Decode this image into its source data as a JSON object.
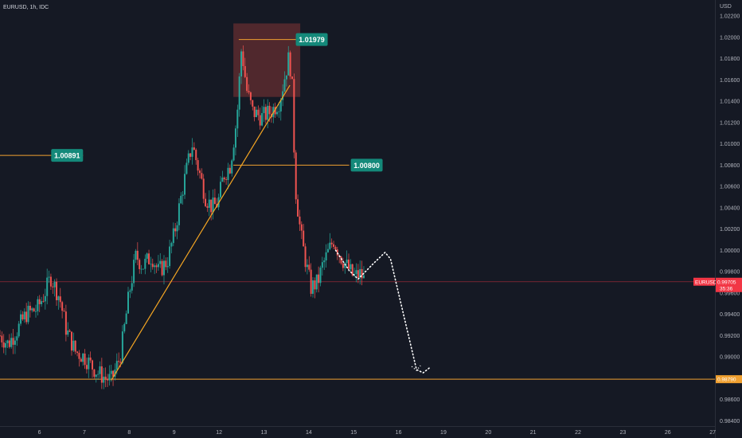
{
  "header": {
    "symbol": "EURUSD, 1h, IDC",
    "currency": "USD"
  },
  "colors": {
    "background": "#151924",
    "up": "#26a69a",
    "down": "#ef5350",
    "level_line": "#f0a030",
    "trend_line": "#f5a623",
    "zone_fill": "#5b2b2f",
    "badge": "#14897a",
    "projection": "#ffffff"
  },
  "chart_data": {
    "type": "candlestick",
    "symbol": "EURUSD",
    "interval": "1h",
    "source": "IDC",
    "y_axis": {
      "range": [
        0.9835,
        1.0235
      ],
      "ticks": [
        "1.02200",
        "1.02000",
        "1.01800",
        "1.01600",
        "1.01400",
        "1.01200",
        "1.01000",
        "1.00800",
        "1.00600",
        "1.00400",
        "1.00200",
        "1.00000",
        "0.99800",
        "0.99600",
        "0.99400",
        "0.99200",
        "0.99000",
        "0.98600",
        "0.98400"
      ]
    },
    "x_axis": {
      "ticks": [
        {
          "label": "6",
          "day": 6
        },
        {
          "label": "7",
          "day": 7
        },
        {
          "label": "8",
          "day": 8
        },
        {
          "label": "9",
          "day": 9
        },
        {
          "label": "12",
          "day": 10
        },
        {
          "label": "13",
          "day": 11
        },
        {
          "label": "14",
          "day": 12
        },
        {
          "label": "15",
          "day": 13
        },
        {
          "label": "16",
          "day": 14
        },
        {
          "label": "19",
          "day": 15
        },
        {
          "label": "20",
          "day": 16
        },
        {
          "label": "21",
          "day": 17
        },
        {
          "label": "22",
          "day": 18
        },
        {
          "label": "23",
          "day": 19
        },
        {
          "label": "26",
          "day": 20
        },
        {
          "label": "27",
          "day": 21
        }
      ],
      "range": [
        5.12,
        21.05
      ]
    },
    "candles_path": [
      [
        5.12,
        0.992
      ],
      [
        5.3,
        0.9912
      ],
      [
        5.5,
        0.9925
      ],
      [
        5.7,
        0.994
      ],
      [
        5.95,
        0.9945
      ],
      [
        6.1,
        0.9958
      ],
      [
        6.25,
        0.9975
      ],
      [
        6.45,
        0.9955
      ],
      [
        6.6,
        0.9925
      ],
      [
        6.8,
        0.9905
      ],
      [
        7.0,
        0.99
      ],
      [
        7.15,
        0.9892
      ],
      [
        7.3,
        0.9885
      ],
      [
        7.48,
        0.988
      ],
      [
        7.6,
        0.9878
      ],
      [
        7.8,
        0.99
      ],
      [
        8.0,
        0.996
      ],
      [
        8.15,
        0.9995
      ],
      [
        8.3,
        0.9985
      ],
      [
        8.5,
        0.9995
      ],
      [
        8.65,
        0.998
      ],
      [
        8.85,
        0.999
      ],
      [
        9.0,
        1.0015
      ],
      [
        9.2,
        1.006
      ],
      [
        9.4,
        1.01
      ],
      [
        9.55,
        1.0075
      ],
      [
        9.7,
        1.005
      ],
      [
        9.85,
        1.004
      ],
      [
        9.98,
        1.0045
      ],
      [
        10.1,
        1.007
      ],
      [
        10.25,
        1.008
      ],
      [
        10.4,
        1.0125
      ],
      [
        10.5,
        1.019
      ],
      [
        10.62,
        1.015
      ],
      [
        10.75,
        1.013
      ],
      [
        10.95,
        1.0125
      ],
      [
        11.15,
        1.013
      ],
      [
        11.35,
        1.014
      ],
      [
        11.45,
        1.016
      ],
      [
        11.55,
        1.018
      ],
      [
        11.62,
        1.0165
      ],
      [
        11.7,
        1.006
      ],
      [
        11.82,
        1.0015
      ],
      [
        11.95,
        0.9985
      ],
      [
        12.05,
        0.9965
      ],
      [
        12.2,
        0.997
      ],
      [
        12.3,
        0.9985
      ],
      [
        12.45,
        1.0
      ],
      [
        12.55,
        1.001
      ],
      [
        12.7,
        0.9995
      ],
      [
        12.85,
        0.9985
      ],
      [
        13.0,
        0.9975
      ],
      [
        13.15,
        0.9978
      ],
      [
        13.25,
        0.9971
      ]
    ],
    "overlays": {
      "supply_zone": {
        "x": [
          10.32,
          11.81
        ],
        "y": [
          1.0144,
          1.0213
        ]
      },
      "level_high": {
        "price": 1.01979,
        "label": "1.01979",
        "x_start": 10.44,
        "x_end": 11.8
      },
      "level_mid": {
        "price": 1.008,
        "label": "1.00800",
        "x_start": 10.32,
        "x_end": 12.9
      },
      "level_left": {
        "price": 1.00891,
        "label": "1.00891",
        "x_start": 5.12,
        "x_end": 6.97
      },
      "support_line": {
        "price": 0.9879,
        "label": "0.98790"
      },
      "current_price": {
        "price": 0.99705,
        "label": "0.99705",
        "countdown": "35:36",
        "tag": "EURUSD"
      },
      "trendline": {
        "from": [
          7.6,
          0.9878
        ],
        "to": [
          11.58,
          1.0155
        ]
      },
      "projection_path": [
        [
          12.6,
          1.0
        ],
        [
          12.9,
          0.9981
        ],
        [
          13.1,
          0.9973
        ],
        [
          13.45,
          0.9988
        ],
        [
          13.7,
          0.9998
        ],
        [
          13.82,
          0.9992
        ],
        [
          14.4,
          0.9888
        ],
        [
          14.55,
          0.9885
        ],
        [
          14.7,
          0.989
        ]
      ]
    }
  }
}
